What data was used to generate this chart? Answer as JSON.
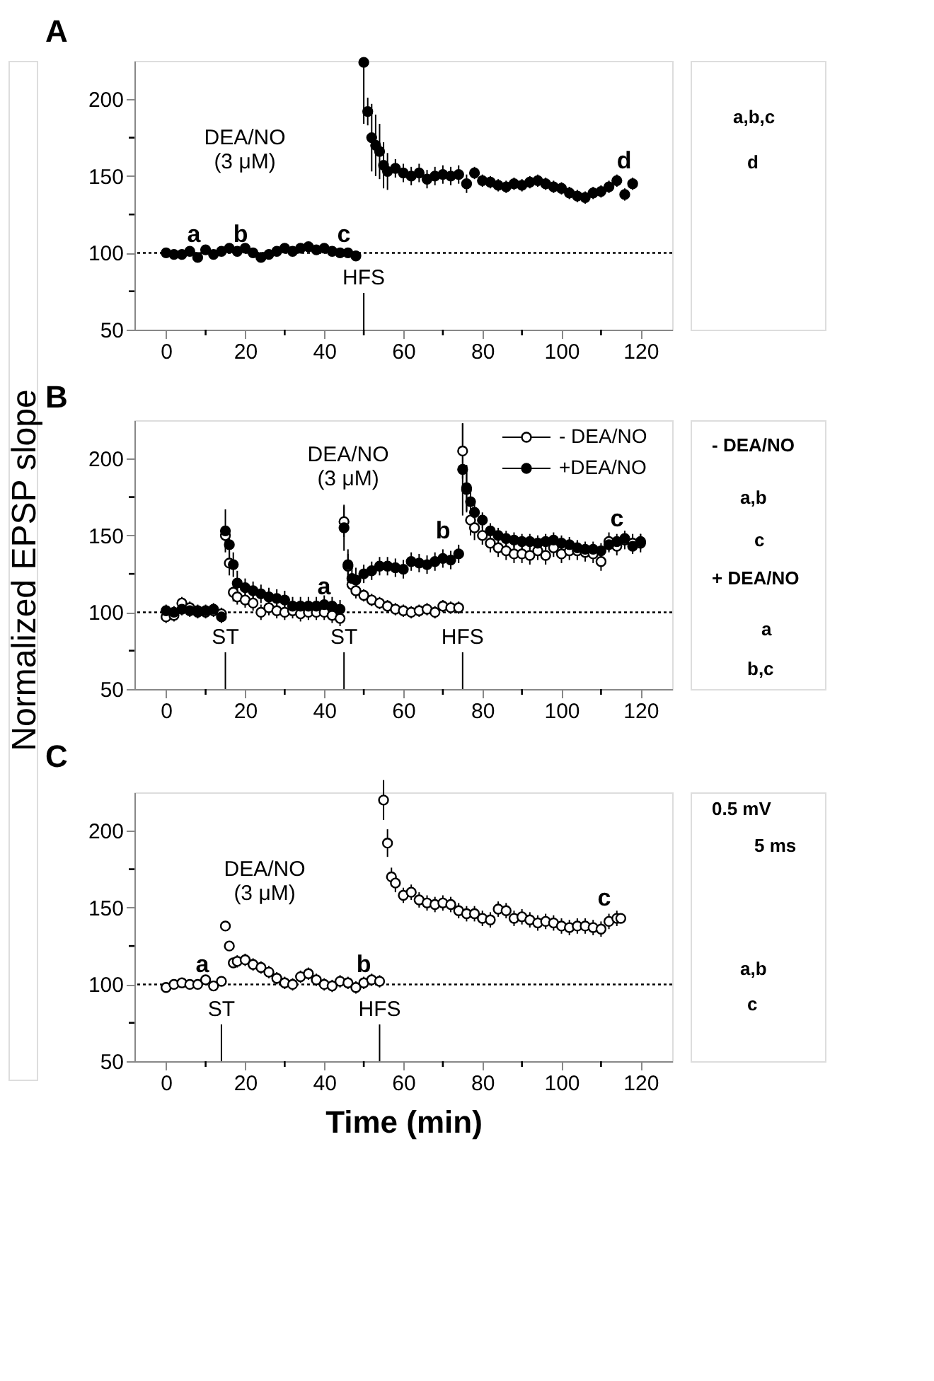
{
  "chart_data": [
    {
      "type": "scatter",
      "title": "A",
      "marker": "circle",
      "grid": false,
      "legend": false,
      "xlim": [
        -8,
        128
      ],
      "xticks": [
        0,
        {
          "value": 10,
          "label": null
        },
        20,
        {
          "value": 30,
          "label": null
        },
        40,
        {
          "value": 50,
          "label": null
        },
        60,
        {
          "value": 70,
          "label": null
        },
        80,
        {
          "value": 90,
          "label": null
        },
        100,
        {
          "value": 110,
          "label": null
        },
        120
      ],
      "ylim": [
        50,
        225
      ],
      "yticks": [
        50,
        {
          "value": 75,
          "label": null
        },
        100,
        {
          "value": 125,
          "label": null
        },
        150,
        {
          "value": 175,
          "label": null
        },
        200
      ],
      "series": [
        {
          "color": "#000000",
          "x": [
            0,
            2,
            4,
            6,
            8,
            10,
            12,
            14,
            16,
            18,
            20,
            22,
            24,
            26,
            28,
            30,
            32,
            34,
            36,
            38,
            40,
            42,
            44,
            46,
            48,
            50,
            51,
            52,
            53,
            54,
            55,
            56,
            58,
            60,
            62,
            64,
            66,
            68,
            70,
            72,
            74,
            76,
            78,
            80,
            82,
            84,
            86,
            88,
            90,
            92,
            94,
            96,
            98,
            100,
            102,
            104,
            106,
            108,
            110,
            112,
            114,
            116,
            118
          ],
          "values": [
            100,
            99,
            99,
            101,
            97,
            102,
            99,
            101,
            103,
            101,
            103,
            100,
            97,
            99,
            101,
            103,
            101,
            103,
            104,
            102,
            103,
            101,
            100,
            100,
            98,
            224,
            192,
            175,
            170,
            166,
            157,
            153,
            155,
            152,
            150,
            152,
            148,
            150,
            151,
            150,
            151,
            145,
            152,
            147,
            146,
            144,
            143,
            145,
            144,
            146,
            147,
            145,
            143,
            142,
            139,
            137,
            136,
            139,
            140,
            143,
            147,
            138,
            145
          ],
          "errors": [
            3,
            3,
            3,
            3,
            3,
            3,
            3,
            3,
            3,
            3,
            3,
            3,
            3,
            3,
            3,
            3,
            3,
            3,
            3,
            3,
            3,
            3,
            3,
            3,
            3,
            [
              184,
              224
            ],
            9,
            22,
            20,
            18,
            15,
            12,
            6,
            6,
            6,
            6,
            6,
            6,
            6,
            6,
            6,
            6,
            4,
            4,
            4,
            4,
            4,
            4,
            4,
            4,
            4,
            4,
            4,
            4,
            4,
            4,
            4,
            4,
            4,
            4,
            4,
            4,
            4
          ]
        }
      ],
      "ref_lines": [
        {
          "axis": "y",
          "value": 100,
          "line_style": "dotted"
        },
        {
          "axis": "x",
          "value": 50,
          "label": "HFS"
        }
      ],
      "annotations": [
        "DEA/NO\n(3 μM)",
        "a",
        "b",
        "c",
        "d",
        "a,b,c",
        "d"
      ]
    },
    {
      "type": "scatter",
      "title": "B",
      "ylabel": "Normalized EPSP slope",
      "marker": "circle",
      "grid": false,
      "legend": "top right",
      "xlim": [
        -8,
        128
      ],
      "xticks": [
        0,
        {
          "value": 10,
          "label": null
        },
        20,
        {
          "value": 30,
          "label": null
        },
        40,
        {
          "value": 50,
          "label": null
        },
        60,
        {
          "value": 70,
          "label": null
        },
        80,
        {
          "value": 90,
          "label": null
        },
        100,
        {
          "value": 110,
          "label": null
        },
        120
      ],
      "ylim": [
        50,
        225
      ],
      "yticks": [
        50,
        {
          "value": 75,
          "label": null
        },
        100,
        {
          "value": 125,
          "label": null
        },
        150,
        {
          "value": 175,
          "label": null
        },
        200
      ],
      "series": [
        {
          "name": "- DEA/NO",
          "color": "#ffffff",
          "x": [
            0,
            2,
            4,
            6,
            8,
            10,
            12,
            14,
            15,
            16,
            17,
            18,
            20,
            22,
            24,
            26,
            28,
            30,
            32,
            34,
            36,
            38,
            40,
            42,
            44,
            45,
            46,
            47,
            48,
            50,
            52,
            54,
            56,
            58,
            60,
            62,
            64,
            66,
            68,
            70,
            72,
            74,
            75,
            76,
            77,
            78,
            80,
            82,
            84,
            86,
            88,
            90,
            92,
            94,
            96,
            98,
            100,
            102,
            104,
            106,
            108,
            110,
            112,
            114,
            116,
            118,
            120
          ],
          "values": [
            97,
            98,
            106,
            103,
            101,
            100,
            101,
            99,
            150,
            132,
            113,
            110,
            108,
            106,
            100,
            103,
            101,
            100,
            101,
            99,
            100,
            100,
            100,
            98,
            96,
            159,
            130,
            118,
            114,
            111,
            108,
            106,
            104,
            102,
            101,
            100,
            101,
            102,
            100,
            104,
            103,
            103,
            205,
            180,
            160,
            155,
            150,
            145,
            142,
            140,
            138,
            138,
            137,
            140,
            137,
            142,
            138,
            140,
            140,
            139,
            138,
            133,
            146,
            143,
            147,
            145,
            145
          ],
          "errors": [
            4,
            4,
            4,
            4,
            4,
            4,
            4,
            4,
            4,
            8,
            6,
            5,
            5,
            5,
            5,
            5,
            5,
            5,
            5,
            5,
            5,
            5,
            5,
            5,
            5,
            10,
            8,
            6,
            5,
            4,
            4,
            4,
            4,
            4,
            4,
            4,
            4,
            4,
            4,
            4,
            4,
            4,
            18,
            15,
            10,
            8,
            6,
            6,
            6,
            6,
            6,
            6,
            6,
            6,
            6,
            6,
            6,
            6,
            6,
            6,
            6,
            6,
            6,
            6,
            6,
            6,
            6
          ]
        },
        {
          "name": "+DEA/NO",
          "color": "#000000",
          "x": [
            0,
            2,
            4,
            6,
            8,
            10,
            12,
            14,
            15,
            16,
            17,
            18,
            20,
            22,
            24,
            26,
            28,
            30,
            32,
            34,
            36,
            38,
            40,
            42,
            44,
            45,
            46,
            47,
            48,
            50,
            52,
            54,
            56,
            58,
            60,
            62,
            64,
            66,
            68,
            70,
            72,
            74,
            75,
            76,
            77,
            78,
            80,
            82,
            84,
            86,
            88,
            90,
            92,
            94,
            96,
            98,
            100,
            102,
            104,
            106,
            108,
            110,
            112,
            114,
            116,
            118,
            120
          ],
          "values": [
            101,
            100,
            102,
            101,
            100,
            101,
            102,
            97,
            153,
            144,
            131,
            119,
            116,
            114,
            112,
            110,
            109,
            108,
            104,
            104,
            104,
            104,
            105,
            104,
            102,
            155,
            131,
            122,
            121,
            125,
            127,
            130,
            130,
            129,
            128,
            133,
            132,
            131,
            133,
            135,
            134,
            138,
            193,
            181,
            172,
            165,
            160,
            153,
            150,
            148,
            147,
            146,
            146,
            145,
            146,
            147,
            145,
            144,
            142,
            141,
            141,
            140,
            144,
            146,
            148,
            143,
            146
          ],
          "errors": [
            4,
            4,
            4,
            4,
            4,
            4,
            4,
            4,
            14,
            10,
            8,
            8,
            6,
            6,
            6,
            6,
            6,
            6,
            6,
            6,
            6,
            6,
            6,
            6,
            6,
            15,
            10,
            8,
            8,
            6,
            6,
            6,
            6,
            6,
            6,
            6,
            6,
            6,
            6,
            6,
            6,
            6,
            30,
            15,
            10,
            8,
            5,
            5,
            5,
            5,
            5,
            5,
            5,
            5,
            5,
            5,
            5,
            5,
            5,
            5,
            5,
            5,
            5,
            5,
            5,
            5,
            5
          ]
        }
      ],
      "ref_lines": [
        {
          "axis": "y",
          "value": 100,
          "line_style": "dotted"
        },
        {
          "axis": "x",
          "value": 15,
          "label": "ST"
        },
        {
          "axis": "x",
          "value": 45,
          "label": "ST"
        },
        {
          "axis": "x",
          "value": 75,
          "label": "HFS"
        }
      ],
      "annotations": [
        "DEA/NO\n(3 μM)",
        "a",
        {
          "text": "b",
          "x": 74,
          "y": 138
        },
        "c",
        "- DEA/NO",
        "a,b",
        "c",
        "+ DEA/NO",
        "a",
        "b,c"
      ]
    },
    {
      "type": "scatter",
      "title": "C",
      "xlabel": "Time (min)",
      "marker": "circle",
      "grid": false,
      "legend": false,
      "xlim": [
        -8,
        128
      ],
      "xticks": [
        0,
        {
          "value": 10,
          "label": null
        },
        20,
        {
          "value": 30,
          "label": null
        },
        40,
        {
          "value": 50,
          "label": null
        },
        60,
        {
          "value": 70,
          "label": null
        },
        80,
        {
          "value": 90,
          "label": null
        },
        100,
        {
          "value": 110,
          "label": null
        },
        120
      ],
      "ylim": [
        50,
        225
      ],
      "yticks": [
        50,
        {
          "value": 75,
          "label": null
        },
        100,
        {
          "value": 125,
          "label": null
        },
        150,
        {
          "value": 175,
          "label": null
        },
        200
      ],
      "series": [
        {
          "color": "#ffffff",
          "x": [
            0,
            2,
            4,
            6,
            8,
            10,
            12,
            14,
            15,
            16,
            17,
            18,
            20,
            22,
            24,
            26,
            28,
            30,
            32,
            34,
            36,
            38,
            40,
            42,
            44,
            46,
            48,
            50,
            52,
            54,
            55,
            56,
            57,
            58,
            60,
            62,
            64,
            66,
            68,
            70,
            72,
            74,
            76,
            78,
            80,
            82,
            84,
            86,
            88,
            90,
            92,
            94,
            96,
            98,
            100,
            102,
            104,
            106,
            108,
            110,
            112,
            114,
            115
          ],
          "values": [
            98,
            100,
            101,
            100,
            100,
            103,
            99,
            102,
            138,
            125,
            114,
            115,
            116,
            113,
            111,
            108,
            104,
            101,
            100,
            105,
            107,
            103,
            100,
            99,
            102,
            101,
            98,
            101,
            103,
            102,
            220,
            192,
            170,
            166,
            158,
            160,
            155,
            153,
            152,
            153,
            152,
            148,
            146,
            146,
            143,
            142,
            149,
            148,
            143,
            144,
            142,
            140,
            141,
            140,
            138,
            137,
            138,
            138,
            137,
            136,
            141,
            143,
            143
          ],
          "errors": [
            3,
            3,
            3,
            3,
            3,
            3,
            3,
            3,
            2,
            2,
            3,
            4,
            4,
            4,
            4,
            4,
            4,
            4,
            4,
            4,
            4,
            4,
            4,
            4,
            4,
            4,
            4,
            4,
            4,
            4,
            13,
            9,
            6,
            6,
            5,
            5,
            5,
            5,
            5,
            5,
            5,
            5,
            5,
            5,
            5,
            5,
            5,
            5,
            5,
            5,
            5,
            5,
            5,
            5,
            5,
            5,
            5,
            5,
            5,
            5,
            5,
            5,
            3
          ]
        }
      ],
      "ref_lines": [
        {
          "axis": "y",
          "value": 100,
          "line_style": "dotted"
        },
        {
          "axis": "x",
          "value": 14,
          "label": "ST"
        },
        {
          "axis": "x",
          "value": 54,
          "label": "HFS"
        }
      ],
      "annotations": [
        "DEA/NO\n(3 μM)",
        "a",
        "b",
        "c",
        "0.5 mV",
        "5 ms",
        "a,b",
        "c"
      ]
    }
  ]
}
